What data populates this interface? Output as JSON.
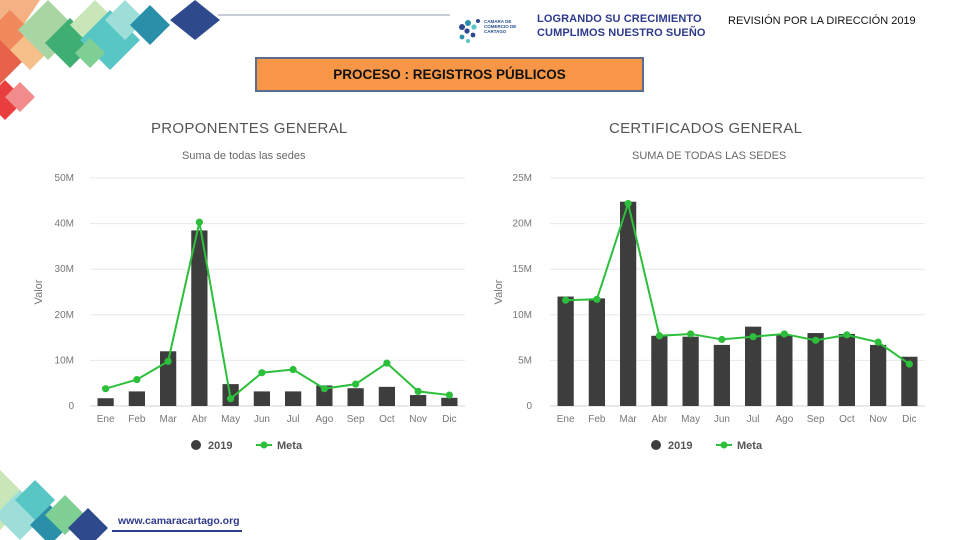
{
  "header": {
    "logo_org": "CAMARA DE COMERCIO DE CARTAGO",
    "slogan_line1": "LOGRANDO SU CRECIMIENTO",
    "slogan_line2": "CUMPLIMOS NUESTRO SUEÑO",
    "review_label": "REVISIÓN POR LA DIRECCIÓN 2019"
  },
  "process_label": "PROCESO : REGISTROS PÚBLICOS",
  "footer": {
    "website": "www.camaracartago.org"
  },
  "colors": {
    "bar": "#3d3d3d",
    "meta": "#2dbf3b",
    "process_bg": "#f79646",
    "brand": "#2e3a8c"
  },
  "chart_data": [
    {
      "type": "bar",
      "title": "PROPONENTES GENERAL",
      "subtitle": "Suma de todas las sedes",
      "ylabel": "Valor",
      "xlabel": "",
      "ylim": [
        0,
        50000000
      ],
      "yticks": [
        0,
        10000000,
        20000000,
        30000000,
        40000000,
        50000000
      ],
      "ytick_labels": [
        "0",
        "10M",
        "20M",
        "30M",
        "40M",
        "50M"
      ],
      "categories": [
        "Ene",
        "Feb",
        "Mar",
        "Abr",
        "May",
        "Jun",
        "Jul",
        "Ago",
        "Sep",
        "Oct",
        "Nov",
        "Dic"
      ],
      "series": [
        {
          "name": "2019",
          "type": "bar",
          "values": [
            1700000,
            3200000,
            12000000,
            38500000,
            4800000,
            3200000,
            3200000,
            4500000,
            3900000,
            4200000,
            2400000,
            1800000
          ]
        },
        {
          "name": "Meta",
          "type": "line",
          "values": [
            3800000,
            5800000,
            9800000,
            40300000,
            1600000,
            7300000,
            8000000,
            3800000,
            4800000,
            9400000,
            3200000,
            2400000
          ]
        }
      ],
      "legend": [
        "2019",
        "Meta"
      ],
      "grid": true
    },
    {
      "type": "bar",
      "title": "CERTIFICADOS GENERAL",
      "subtitle": "SUMA DE TODAS LAS SEDES",
      "ylabel": "Valor",
      "xlabel": "",
      "ylim": [
        0,
        25000000
      ],
      "yticks": [
        0,
        5000000,
        10000000,
        15000000,
        20000000,
        25000000
      ],
      "ytick_labels": [
        "0",
        "5M",
        "10M",
        "15M",
        "20M",
        "25M"
      ],
      "categories": [
        "Ene",
        "Feb",
        "Mar",
        "Abr",
        "May",
        "Jun",
        "Jul",
        "Ago",
        "Sep",
        "Oct",
        "Nov",
        "Dic"
      ],
      "series": [
        {
          "name": "2019",
          "type": "bar",
          "values": [
            12000000,
            11800000,
            22400000,
            7700000,
            7600000,
            6700000,
            8700000,
            7800000,
            8000000,
            7900000,
            6700000,
            5400000
          ]
        },
        {
          "name": "Meta",
          "type": "line",
          "values": [
            11600000,
            11700000,
            22200000,
            7700000,
            7900000,
            7300000,
            7600000,
            7900000,
            7200000,
            7800000,
            7000000,
            4600000
          ]
        }
      ],
      "legend": [
        "2019",
        "Meta"
      ],
      "grid": true
    }
  ]
}
